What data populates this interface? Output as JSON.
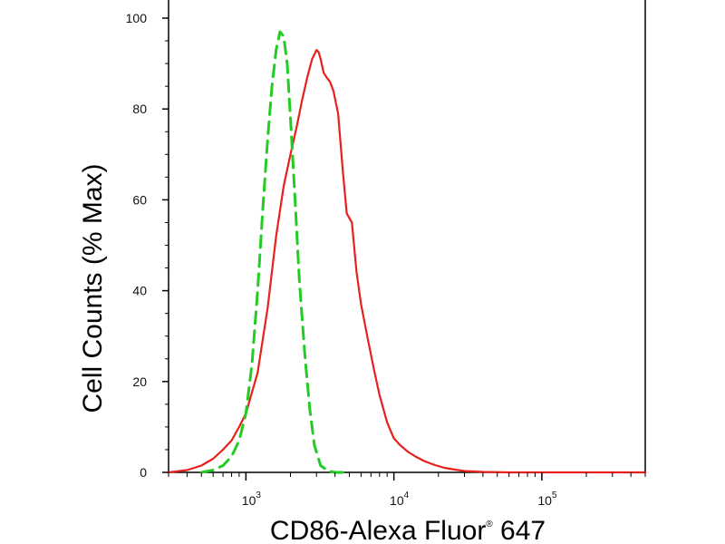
{
  "chart_data": {
    "type": "line",
    "xlabel": "CD86-Alexa Fluor",
    "xlabel_sup": "®",
    "xlabel_suffix": " 647",
    "ylabel": "Cell Counts (% Max)",
    "x_scale": "log",
    "xlim": [
      300,
      500000
    ],
    "ylim": [
      0,
      100
    ],
    "y_ticks": [
      0,
      20,
      40,
      60,
      80,
      100
    ],
    "x_ticks": [
      {
        "base": "10",
        "exp": "3",
        "value": 1000
      },
      {
        "base": "10",
        "exp": "4",
        "value": 10000
      },
      {
        "base": "10",
        "exp": "5",
        "value": 100000
      }
    ],
    "grid": false,
    "legend": "none",
    "series": [
      {
        "color": "#e8201c",
        "style": "solid",
        "x": [
          300,
          400,
          500,
          600,
          700,
          800,
          900,
          1000,
          1200,
          1400,
          1600,
          1800,
          2000,
          2200,
          2400,
          2600,
          2800,
          3000,
          3100,
          3200,
          3350,
          3500,
          3700,
          3900,
          4200,
          4500,
          4800,
          5200,
          5600,
          6000,
          6600,
          7300,
          8000,
          9000,
          10000,
          11000,
          12500,
          14000,
          16000,
          19000,
          22000,
          26000,
          30000,
          40000,
          60000,
          100000,
          200000,
          500000
        ],
        "y": [
          0,
          0.5,
          1.5,
          3,
          5,
          7,
          10,
          13,
          22,
          36,
          52,
          63,
          70,
          76,
          82,
          87,
          91,
          93,
          92.5,
          91,
          88,
          87,
          86,
          84,
          79,
          67,
          57,
          55,
          44,
          37,
          30,
          23,
          17,
          11,
          7.5,
          6,
          4.5,
          3.5,
          2.5,
          1.6,
          1,
          0.6,
          0.3,
          0.1,
          0,
          0,
          0,
          0
        ]
      },
      {
        "color": "#22cc22",
        "style": "dashed",
        "x": [
          500,
          600,
          700,
          800,
          900,
          1000,
          1100,
          1200,
          1300,
          1400,
          1500,
          1600,
          1700,
          1800,
          1900,
          2000,
          2150,
          2300,
          2500,
          2700,
          2900,
          3200,
          3600,
          4000,
          5000
        ],
        "y": [
          0,
          0.5,
          1.5,
          3.5,
          7,
          13,
          24,
          40,
          58,
          73,
          85,
          93,
          97,
          96,
          90,
          78,
          60,
          42,
          26,
          14,
          6,
          1.5,
          0.3,
          0,
          0
        ]
      }
    ]
  }
}
